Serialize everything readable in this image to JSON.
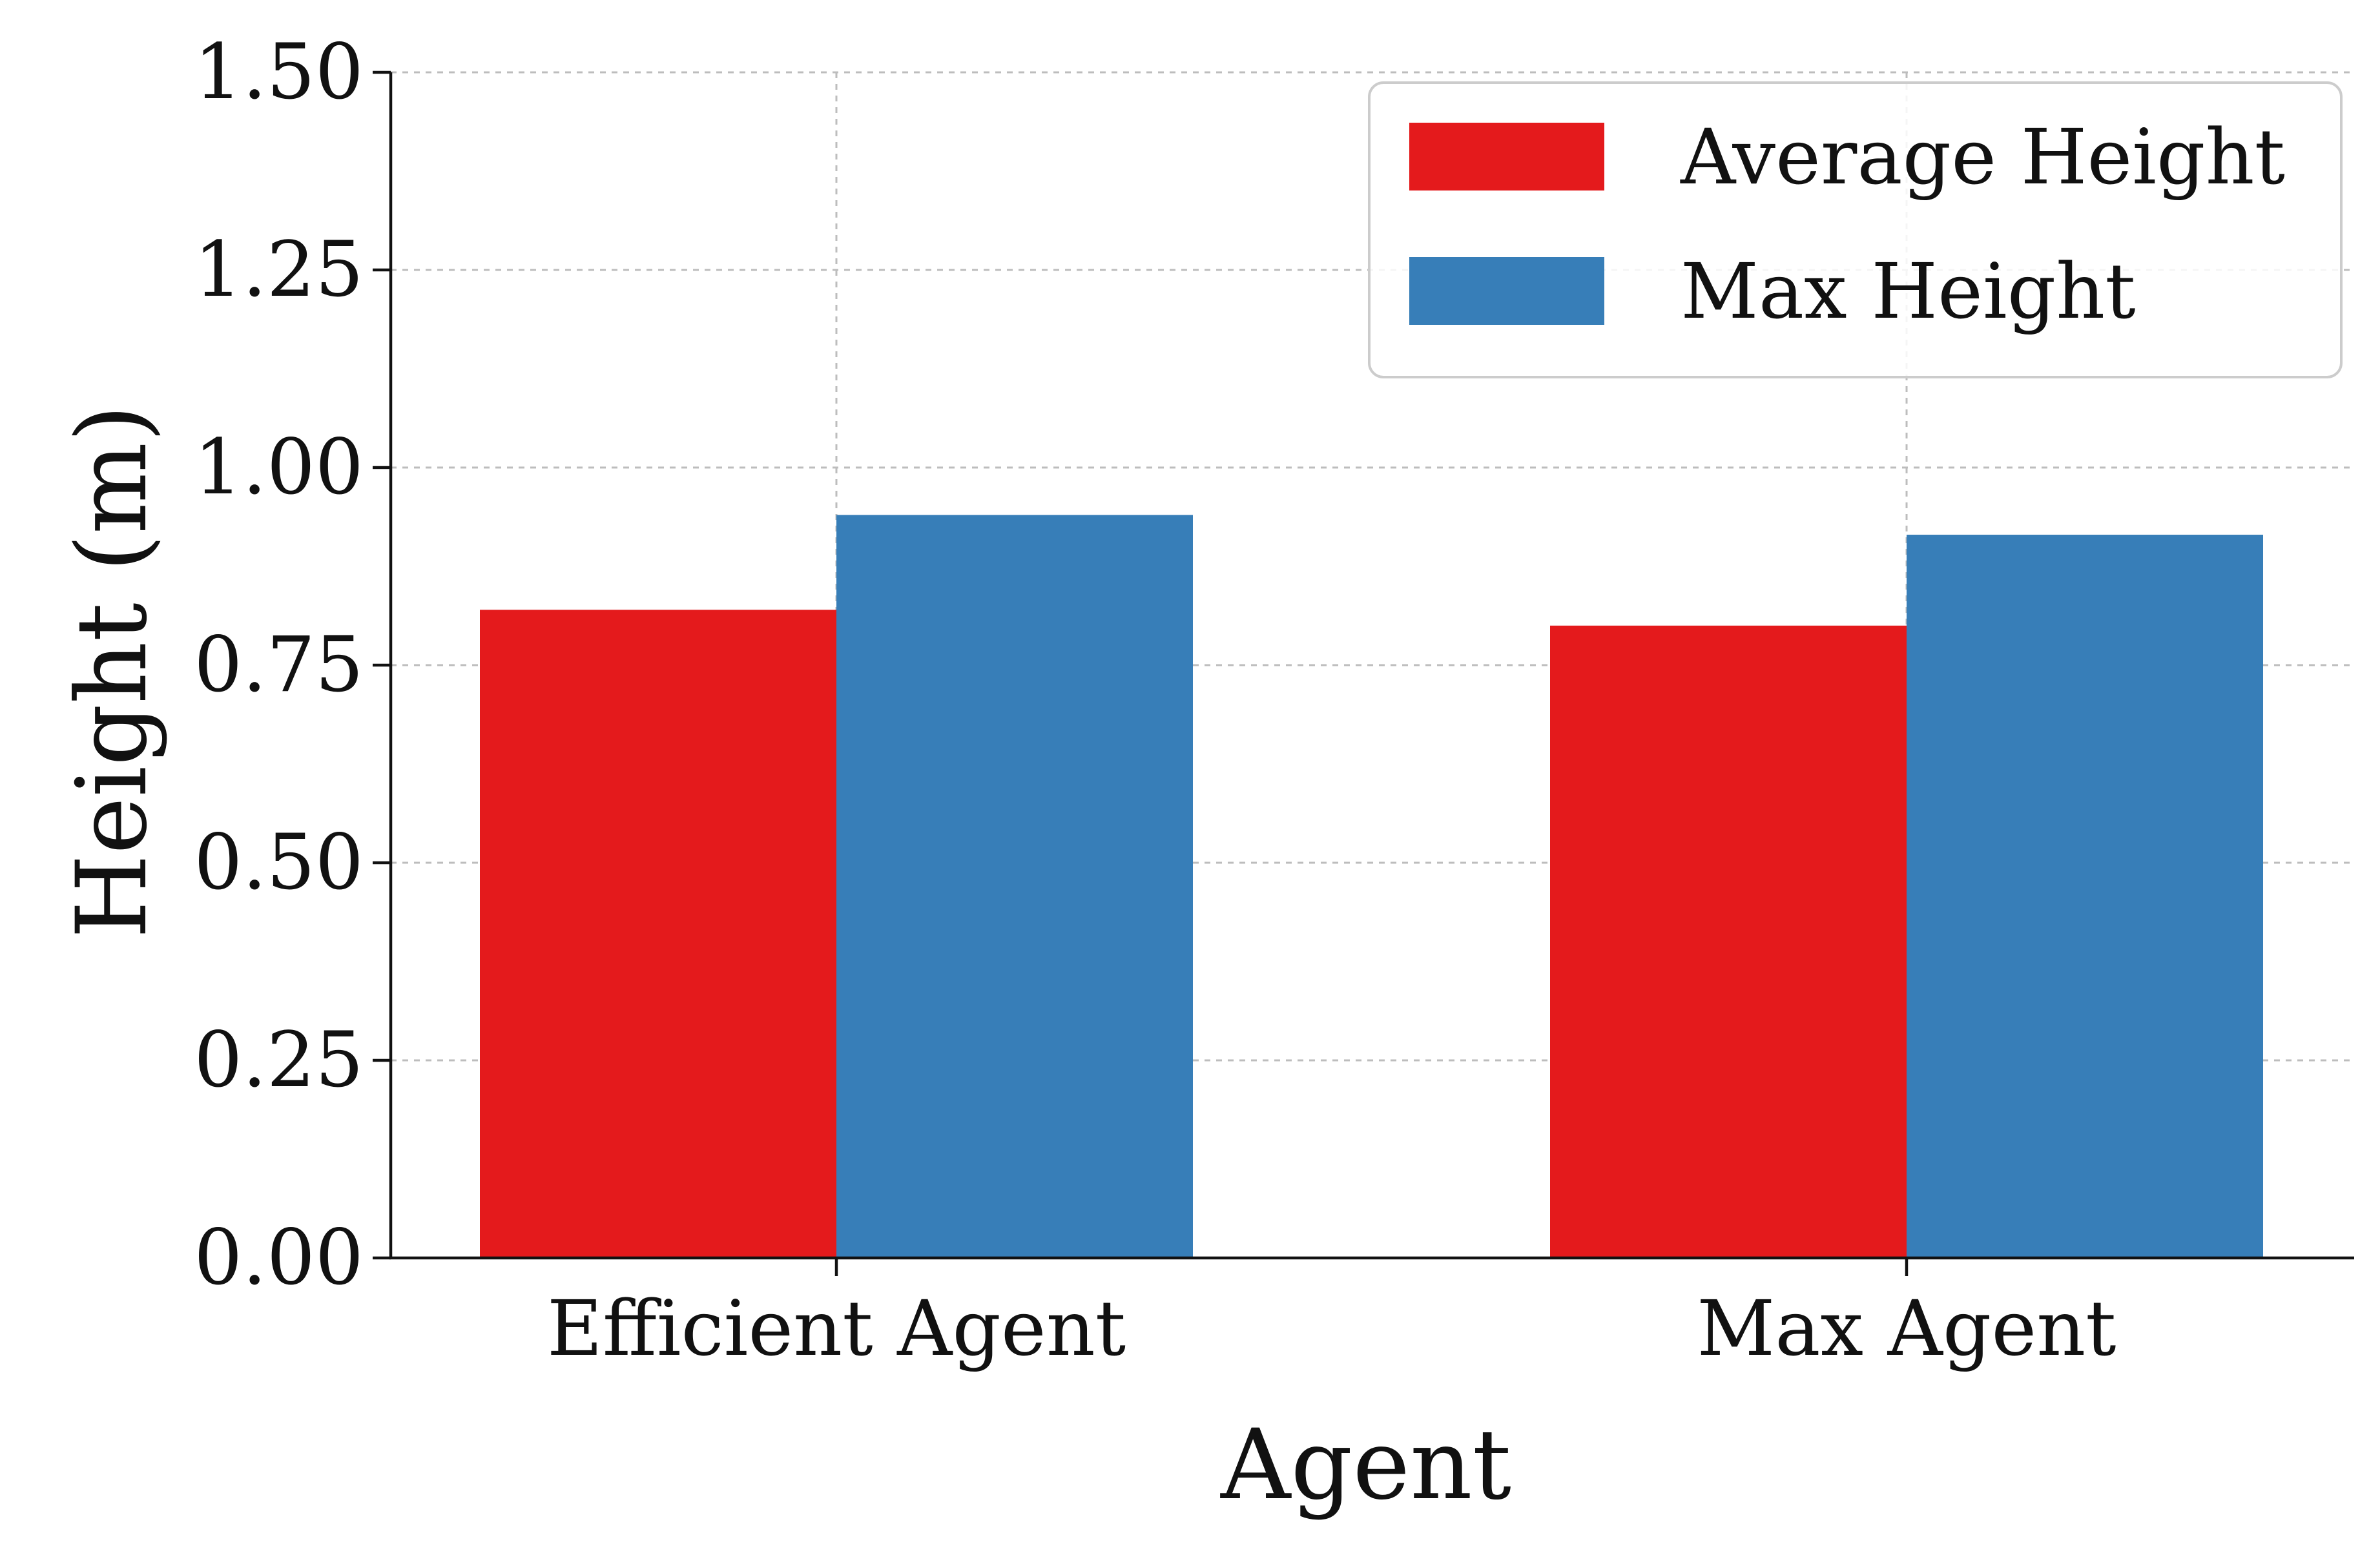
{
  "chart_data": {
    "type": "bar",
    "categories": [
      "Efficient Agent",
      "Max Agent"
    ],
    "series": [
      {
        "name": "Average Height",
        "values": [
          0.82,
          0.8
        ],
        "color": "#e41a1c"
      },
      {
        "name": "Max Height",
        "values": [
          0.94,
          0.915
        ],
        "color": "#377eb8"
      }
    ],
    "title": "",
    "xlabel": "Agent",
    "ylabel": "Height (m)",
    "ylim": [
      0,
      1.5
    ],
    "yticks": [
      "0.00",
      "0.25",
      "0.50",
      "0.75",
      "1.00",
      "1.25",
      "1.50"
    ],
    "grid": true,
    "legend_position": "top-right"
  }
}
